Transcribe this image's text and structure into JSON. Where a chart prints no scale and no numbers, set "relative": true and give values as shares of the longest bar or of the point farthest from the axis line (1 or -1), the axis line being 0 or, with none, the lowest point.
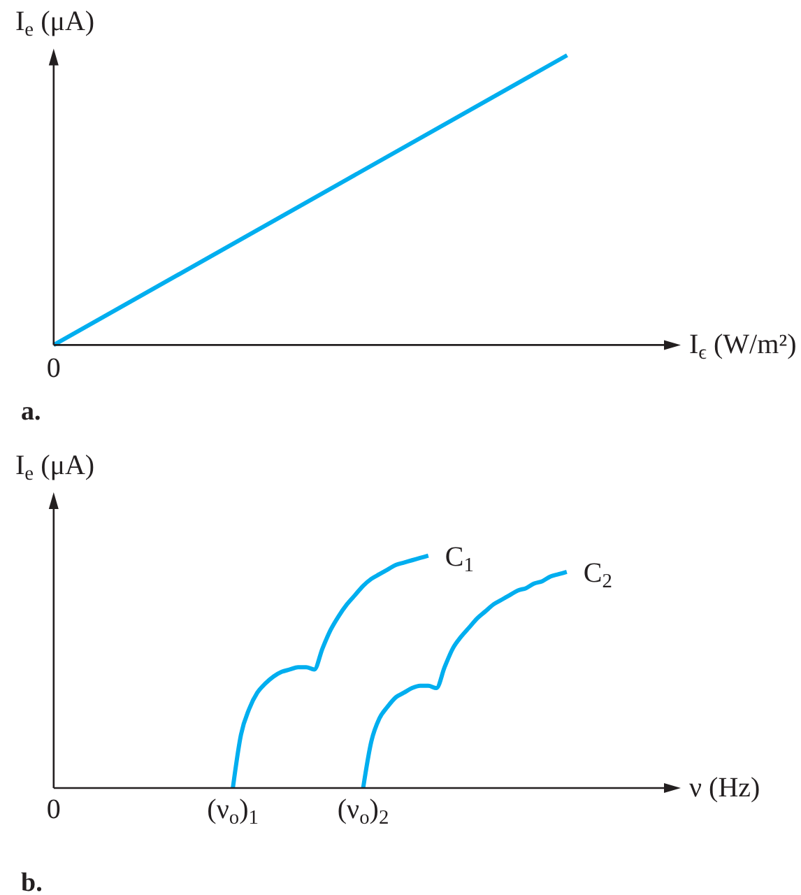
{
  "chart_data": [
    {
      "type": "line",
      "title": "a.",
      "xlabel": "I$_{ϵ}$ (W/m²)",
      "ylabel": "I$_{e}$ (μA)",
      "relative": true,
      "categories": [
        null,
        null
      ],
      "annotations": [
        {
          "text": "0",
          "y": 0
        }
      ],
      "series": [
        {
          "color": "#00aeef",
          "values": [
            0,
            1
          ]
        }
      ]
    },
    {
      "type": "line",
      "title": "b.",
      "xlabel": "ν (Hz)",
      "ylabel": "I$_{e}$ (μA)",
      "relative": true,
      "categories": [
        "0",
        null,
        null,
        null,
        null,
        null,
        null,
        null,
        null,
        null,
        null,
        null,
        null,
        null,
        null,
        null,
        null,
        null,
        null,
        null,
        null,
        null,
        "(ν$_{o}$)$_{1}$",
        null,
        null,
        null,
        null,
        null,
        null,
        null,
        null,
        null,
        null,
        null,
        null,
        null,
        null,
        null,
        "(ν$_{o}$)$_{2}$",
        null,
        null,
        null,
        null,
        null,
        null,
        null,
        null,
        null,
        null,
        null,
        null,
        null,
        null,
        null,
        null,
        null,
        null,
        null,
        null,
        null,
        null,
        null,
        null,
        null,
        null,
        null,
        null,
        null,
        null,
        null,
        null,
        null,
        null,
        null,
        null,
        null,
        null,
        null
      ],
      "series": [
        {
          "name": "C$_{1}$",
          "color": "#00aeef",
          "values": [
            null,
            null,
            null,
            null,
            null,
            null,
            null,
            null,
            null,
            null,
            null,
            null,
            null,
            null,
            null,
            null,
            null,
            null,
            null,
            null,
            null,
            null,
            0,
            0.23,
            0.34,
            0.41,
            0.45,
            0.48,
            0.5,
            0.51,
            0.52,
            0.52,
            0.51,
            0.6,
            0.68,
            0.74,
            0.79,
            0.83,
            0.87,
            0.9,
            0.92,
            0.94,
            0.96,
            0.97,
            0.98,
            0.99,
            1,
            null,
            null,
            null,
            null,
            null,
            null,
            null,
            null,
            null,
            null,
            null,
            null,
            null,
            null,
            null,
            null,
            null,
            null,
            null,
            null,
            null,
            null,
            null,
            null,
            null,
            null,
            null,
            null,
            null,
            null,
            null
          ]
        },
        {
          "name": "C$_{2}$",
          "color": "#00aeef",
          "values": [
            null,
            null,
            null,
            null,
            null,
            null,
            null,
            null,
            null,
            null,
            null,
            null,
            null,
            null,
            null,
            null,
            null,
            null,
            null,
            null,
            null,
            null,
            null,
            null,
            null,
            null,
            null,
            null,
            null,
            null,
            null,
            null,
            null,
            null,
            null,
            null,
            null,
            null,
            0,
            0.2,
            0.3,
            0.35,
            0.39,
            0.41,
            0.43,
            0.44,
            0.44,
            0.43,
            0.52,
            0.6,
            0.65,
            0.69,
            0.73,
            0.76,
            0.79,
            0.81,
            0.83,
            0.85,
            0.86,
            0.88,
            0.89,
            0.91,
            0.92,
            0.93,
            null,
            null,
            null,
            null,
            null,
            null,
            null,
            null,
            null,
            null,
            null,
            null,
            null,
            null
          ]
        }
      ]
    }
  ]
}
